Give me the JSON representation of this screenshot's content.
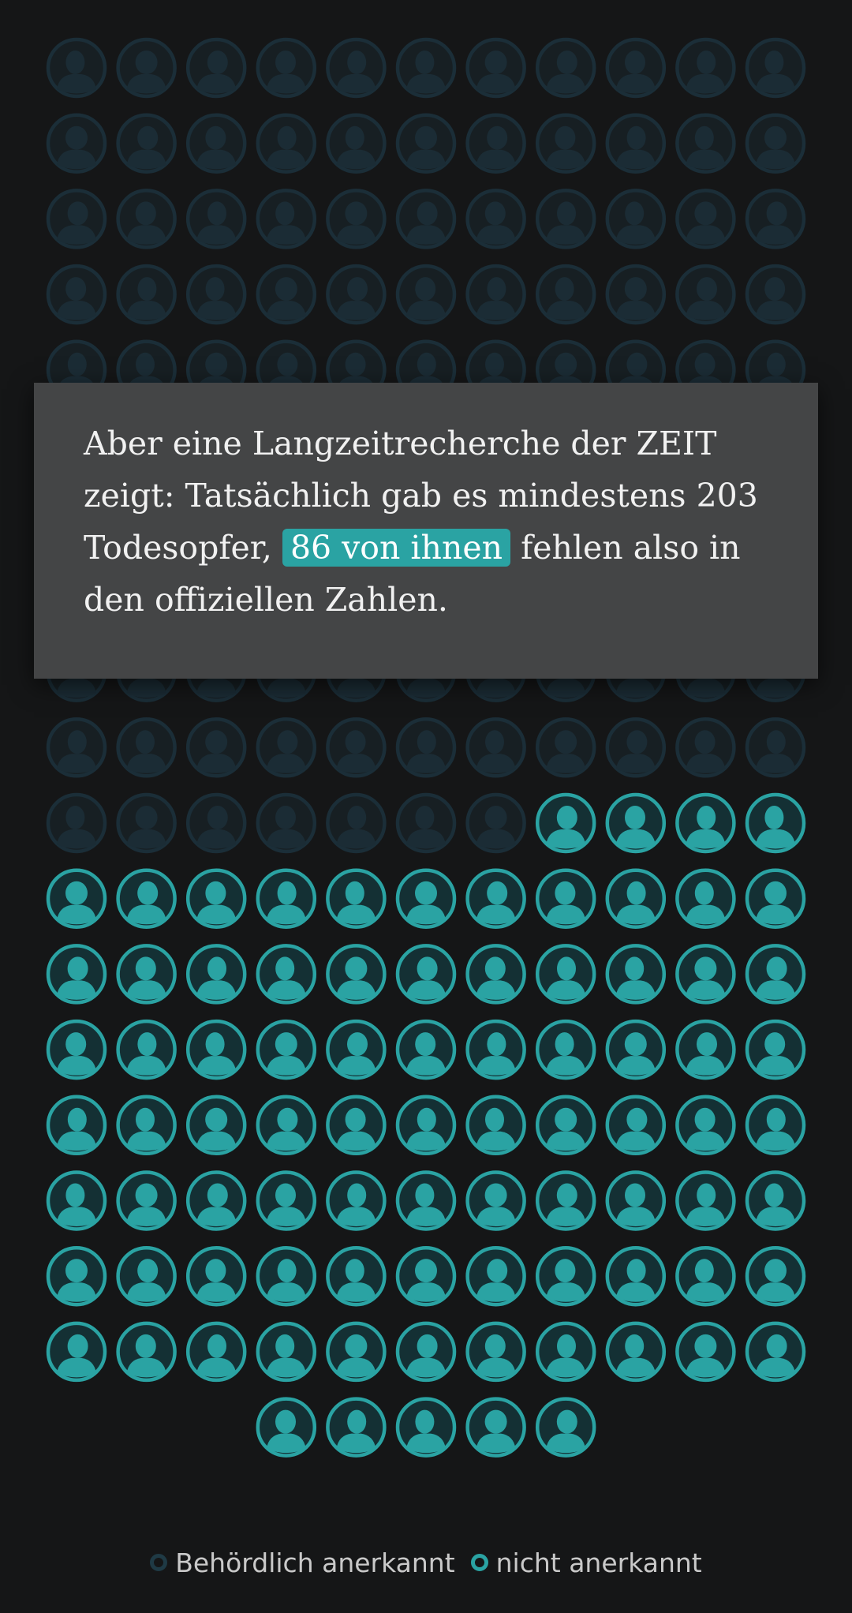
{
  "text": {
    "before": "Aber eine Langzeitrecherche der ZEIT zeigt: Tatsächlich gab es mindestens 203 Todesopfer, ",
    "highlight": "86 von ihnen",
    "after": " fehlen also in den offiziellen Zahlen."
  },
  "legend": [
    {
      "label": "Behördlich anerkannt",
      "color": "#1b2f38"
    },
    {
      "label": "nicht anerkannt",
      "color": "#2aa3a3"
    }
  ],
  "chart_data": {
    "type": "waffle",
    "total": 203,
    "series": [
      {
        "name": "Behördlich anerkannt",
        "value": 117,
        "color": "#1b2f38"
      },
      {
        "name": "nicht anerkannt",
        "value": 86,
        "color": "#2aa3a3"
      }
    ]
  }
}
